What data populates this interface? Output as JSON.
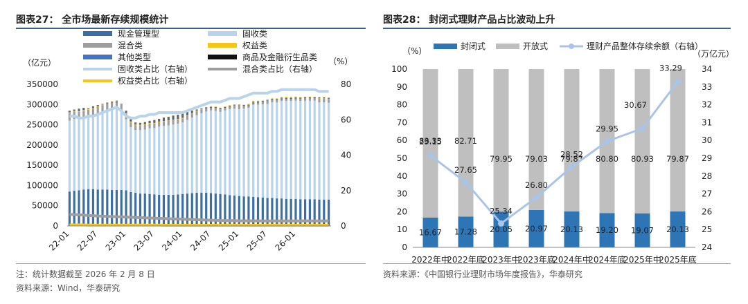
{
  "left_panel": {
    "title": "图表27：  全市场最新存续规模统计",
    "note": "注：统计数据截至 2026 年 2 月 8 日",
    "source": "资料来源：Wind，华泰研究"
  },
  "right_panel": {
    "title": "图表28：  封闭式理财产品占比波动上升",
    "source": "资料来源：《中国银行业理财市场年度报告》，华泰研究"
  },
  "chart_data": [
    {
      "type": "bar",
      "stacked": true,
      "title": "全市场最新存续规模统计",
      "left_axis_label": "（亿元）",
      "right_axis_label": "（%）",
      "ylim": [
        0,
        350000
      ],
      "y_ticks": [
        "0",
        "50000",
        "100000",
        "150000",
        "200000",
        "250000",
        "300000",
        "350000"
      ],
      "y2lim": [
        0,
        80
      ],
      "y2_ticks": [
        "0",
        "20",
        "40",
        "60",
        "80"
      ],
      "x_ticks": [
        "22-01",
        "22-07",
        "23-01",
        "23-07",
        "24-01",
        "24-07",
        "25-01",
        "25-07",
        "26-01"
      ],
      "n_points": 56,
      "x_tick_positions": [
        0,
        6,
        12,
        18,
        24,
        30,
        36,
        42,
        48
      ],
      "legend": [
        {
          "name": "现金管理型",
          "kind": "bar",
          "color": "#3b6ea5"
        },
        {
          "name": "固收类",
          "kind": "bar",
          "color": "#b9d3ea"
        },
        {
          "name": "混合类",
          "kind": "bar",
          "color": "#9e9e9e"
        },
        {
          "name": "权益类",
          "kind": "bar",
          "color": "#f5c518"
        },
        {
          "name": "其他类型",
          "kind": "bar",
          "color": "#4472c4"
        },
        {
          "name": "商品及金融衍生品类",
          "kind": "bar",
          "color": "#111111"
        },
        {
          "name": "固收类占比（右轴）",
          "kind": "line",
          "color": "#b9d3ea"
        },
        {
          "name": "混合类占比（右轴）",
          "kind": "line",
          "color": "#9e9e9e"
        },
        {
          "name": "权益类占比（右轴）",
          "kind": "line",
          "color": "#f5c518"
        }
      ],
      "series": {
        "total": [
          283000,
          286000,
          288000,
          290000,
          289000,
          294000,
          297000,
          300000,
          303000,
          305000,
          305000,
          300000,
          283000,
          262000,
          254000,
          253000,
          255000,
          258000,
          260000,
          263000,
          266000,
          268000,
          271000,
          273000,
          276000,
          280000,
          283000,
          286000,
          289000,
          291000,
          292000,
          292000,
          290000,
          292000,
          295000,
          298000,
          298000,
          297000,
          296000,
          303000,
          305000,
          307000,
          310000,
          311000,
          312000,
          313000,
          314000,
          314000,
          315000,
          315000,
          316000,
          316000,
          316000,
          316000,
          316000,
          315000
        ],
        "cash_management": [
          85000,
          87000,
          88000,
          90000,
          91000,
          91000,
          90000,
          90000,
          90000,
          89000,
          89000,
          89000,
          88000,
          84000,
          82000,
          80000,
          80000,
          79000,
          78000,
          77000,
          77000,
          77000,
          77000,
          78000,
          79000,
          80000,
          81000,
          82000,
          82000,
          82000,
          81000,
          80000,
          79000,
          78000,
          76000,
          75000,
          74000,
          73000,
          73000,
          72000,
          71000,
          70000,
          69000,
          69000,
          68000,
          68000,
          67000,
          67000,
          67000,
          66000,
          66000,
          66000,
          66000,
          65000,
          65000,
          65000
        ],
        "fixed_income_pct": [
          62,
          62,
          61,
          61,
          62,
          62,
          63,
          64,
          65,
          66,
          67,
          65,
          62,
          61,
          61,
          62,
          62,
          63,
          63,
          64,
          64,
          64,
          64,
          64,
          64,
          65,
          66,
          67,
          68,
          69,
          70,
          70,
          70,
          71,
          72,
          72,
          72,
          73,
          74,
          75,
          75,
          75,
          75,
          76,
          76,
          77,
          77,
          77,
          77,
          77,
          77,
          77,
          77,
          76,
          76,
          76
        ],
        "mixed_pct": [
          6.5,
          6.4,
          6.3,
          6.1,
          5.9,
          5.8,
          5.6,
          5.5,
          5.4,
          5.3,
          5.2,
          5.1,
          5.0,
          4.9,
          4.8,
          4.7,
          4.6,
          4.5,
          4.4,
          4.3,
          4.2,
          4.1,
          4.0,
          3.9,
          3.8,
          3.7,
          3.6,
          3.5,
          3.4,
          3.3,
          3.2,
          3.2,
          3.1,
          3.1,
          3.0,
          3.0,
          2.9,
          2.9,
          2.9,
          2.9,
          2.8,
          2.8,
          2.8,
          2.8,
          2.8,
          2.8,
          2.8,
          2.8,
          2.8,
          2.8,
          2.8,
          2.8,
          2.8,
          2.8,
          2.8,
          2.8
        ],
        "equity_pct": [
          0.6,
          0.6,
          0.6,
          0.6,
          0.5,
          0.5,
          0.5,
          0.5,
          0.5,
          0.5,
          0.5,
          0.5,
          0.5,
          0.5,
          0.5,
          0.5,
          0.5,
          0.5,
          0.5,
          0.5,
          0.4,
          0.4,
          0.4,
          0.4,
          0.4,
          0.4,
          0.4,
          0.4,
          0.4,
          0.4,
          0.4,
          0.4,
          0.4,
          0.4,
          0.4,
          0.4,
          0.4,
          0.4,
          0.4,
          0.4,
          0.4,
          0.4,
          0.4,
          0.4,
          0.4,
          0.4,
          0.4,
          0.4,
          0.4,
          0.4,
          0.4,
          0.4,
          0.4,
          0.4,
          0.4,
          0.4
        ]
      }
    },
    {
      "type": "bar",
      "stacked": true,
      "title": "封闭式理财产品占比波动上升",
      "left_axis_label": "（%）",
      "right_axis_label": "（万亿元）",
      "ylim": [
        0,
        100
      ],
      "y_ticks": [
        "0",
        "10",
        "20",
        "30",
        "40",
        "50",
        "60",
        "70",
        "80",
        "90",
        "100"
      ],
      "y2lim": [
        24,
        34
      ],
      "y2_ticks": [
        "24",
        "25",
        "26",
        "27",
        "28",
        "29",
        "30",
        "31",
        "32",
        "33",
        "34"
      ],
      "categories": [
        "2022年中",
        "2022年底",
        "2023年中",
        "2023年底",
        "2024年中",
        "2024年底",
        "2025年中",
        "2025年底"
      ],
      "legend": [
        {
          "name": "封闭式",
          "kind": "bar",
          "color": "#2e75b6"
        },
        {
          "name": "开放式",
          "kind": "bar",
          "color": "#bfbfbf"
        },
        {
          "name": "理财产品整体存续余额（右轴）",
          "kind": "line",
          "color": "#a9c4e6"
        }
      ],
      "series": [
        {
          "name": "封闭式",
          "values": [
            16.67,
            17.28,
            20.05,
            20.97,
            20.13,
            19.2,
            19.07,
            20.13
          ],
          "labels": [
            "16.67",
            "17.28",
            "20.05",
            "20.97",
            "20.13",
            "19.20",
            "19.07",
            "20.13"
          ]
        },
        {
          "name": "开放式",
          "values": [
            83.33,
            82.71,
            79.95,
            79.03,
            79.87,
            80.8,
            80.93,
            79.87
          ],
          "labels": [
            "83.33",
            "82.71",
            "79.95",
            "79.03",
            "79.87",
            "80.80",
            "80.93",
            "79.87"
          ]
        },
        {
          "name": "理财产品整体存续余额（右轴）",
          "values": [
            29.15,
            27.65,
            25.34,
            26.8,
            28.52,
            29.95,
            30.67,
            33.29
          ],
          "labels": [
            "29.15",
            "27.65",
            "25.34",
            "26.80",
            "28.52",
            "29.95",
            "30.67",
            "33.29"
          ]
        }
      ]
    }
  ]
}
